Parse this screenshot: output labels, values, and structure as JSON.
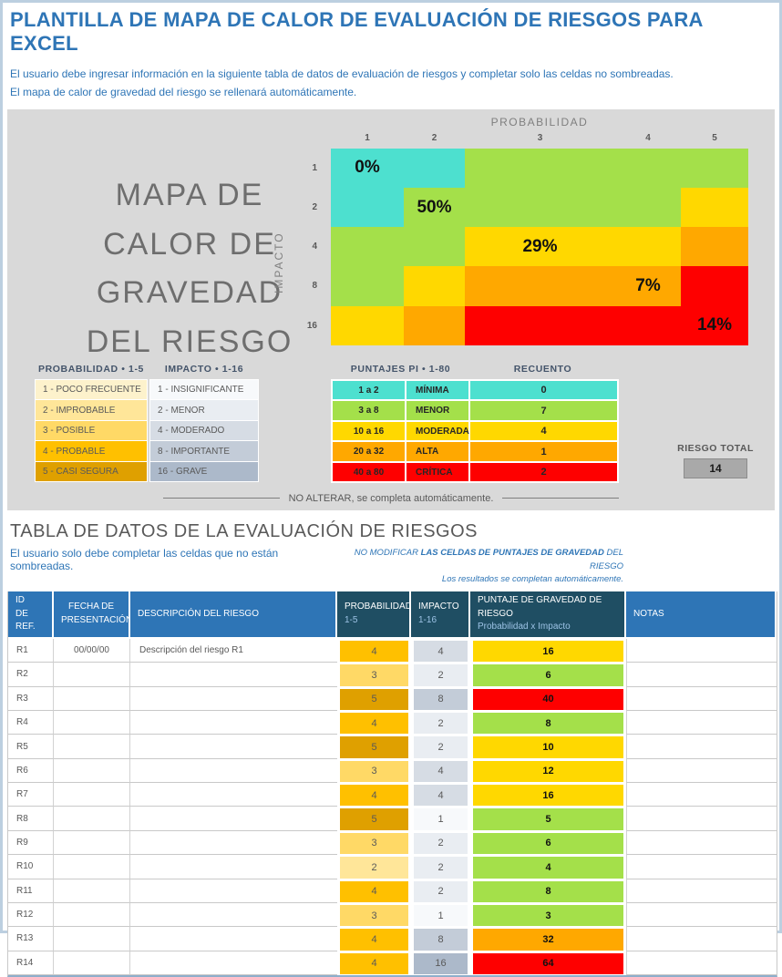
{
  "page": {
    "title": "PLANTILLA DE MAPA DE CALOR DE EVALUACIÓN DE RIESGOS PARA EXCEL",
    "instructions": [
      "El usuario debe ingresar información en la siguiente tabla de datos de evaluación de riesgos y completar solo las celdas no sombreadas.",
      "El mapa de calor de gravedad del riesgo se rellenará automáticamente."
    ]
  },
  "colors": {
    "accent_blue": "#2e75b6",
    "header_dark": "#1f4e63",
    "panel_gray": "#d9d9d9",
    "severity": {
      "minima": "#4de0cf",
      "menor": "#a4e04a",
      "moderada": "#ffd800",
      "alta": "#ffa800",
      "critica": "#fe0000"
    },
    "probability": {
      "1": "#fdf2cc",
      "2": "#ffe699",
      "3": "#ffd966",
      "4": "#ffc000",
      "5": "#dfa000"
    },
    "impact": {
      "1": "#f7f9fb",
      "2": "#e9edf2",
      "4": "#d6dce4",
      "8": "#c3ccd8",
      "16": "#acb9ca"
    }
  },
  "heatmap": {
    "title_lines": [
      "MAPA DE",
      "CALOR DE",
      "GRAVEDAD",
      "DEL RIESGO"
    ],
    "x_axis_label": "PROBABILIDAD",
    "y_axis_label": "IMPACTO",
    "col_labels": [
      "1",
      "2",
      "3",
      "4",
      "5"
    ],
    "row_labels": [
      "1",
      "2",
      "4",
      "8",
      "16"
    ],
    "cells": [
      [
        "minima",
        "minima",
        "menor",
        "menor",
        "menor"
      ],
      [
        "minima",
        "menor",
        "menor",
        "menor",
        "moderada"
      ],
      [
        "menor",
        "menor",
        "moderada",
        "moderada",
        "alta"
      ],
      [
        "menor",
        "moderada",
        "alta",
        "alta",
        "critica"
      ],
      [
        "moderada",
        "alta",
        "critica",
        "critica",
        "critica"
      ]
    ],
    "percent_labels": [
      {
        "row": 0,
        "col": 0,
        "text": "0%"
      },
      {
        "row": 1,
        "col": 1,
        "text": "50%"
      },
      {
        "row": 2,
        "col": 2,
        "text": "29%"
      },
      {
        "row": 3,
        "col": 3,
        "text": "7%"
      },
      {
        "row": 4,
        "col": 4,
        "text": "14%"
      }
    ]
  },
  "legends": {
    "probability": {
      "header": "PROBABILIDAD • 1-5",
      "items": [
        {
          "value": "1",
          "label": "1 - POCO FRECUENTE"
        },
        {
          "value": "2",
          "label": "2 - IMPROBABLE"
        },
        {
          "value": "3",
          "label": "3 - POSIBLE"
        },
        {
          "value": "4",
          "label": "4 - PROBABLE"
        },
        {
          "value": "5",
          "label": "5 - CASI SEGURA"
        }
      ]
    },
    "impact": {
      "header": "IMPACTO • 1-16",
      "items": [
        {
          "value": "1",
          "label": "1 - INSIGNIFICANTE"
        },
        {
          "value": "2",
          "label": "2 - MENOR"
        },
        {
          "value": "4",
          "label": "4 - MODERADO"
        },
        {
          "value": "8",
          "label": "8 - IMPORTANTE"
        },
        {
          "value": "16",
          "label": "16 - GRAVE"
        }
      ]
    },
    "scores": {
      "header": "PUNTAJES PI • 1-80",
      "count_header": "RECUENTO",
      "rows": [
        {
          "range": "1 a 2",
          "label": "MÍNIMA",
          "count": "0",
          "severity": "minima"
        },
        {
          "range": "3 a 8",
          "label": "MENOR",
          "count": "7",
          "severity": "menor"
        },
        {
          "range": "10 a 16",
          "label": "MODERADA",
          "count": "4",
          "severity": "moderada"
        },
        {
          "range": "20 a 32",
          "label": "ALTA",
          "count": "1",
          "severity": "alta"
        },
        {
          "range": "40 a 80",
          "label": "CRÍTICA",
          "count": "2",
          "severity": "critica"
        }
      ]
    },
    "risk_total": {
      "label": "RIESGO TOTAL",
      "value": "14"
    },
    "no_alter_note": "NO ALTERAR, se completa automáticamente."
  },
  "data_section": {
    "title": "TABLA DE DATOS DE LA EVALUACIÓN DE RIESGOS",
    "instruction_left": "El usuario solo debe completar las celdas que no están sombreadas.",
    "note_right": {
      "prefix": "NO MODIFICAR ",
      "bold": "LAS CELDAS DE PUNTAJES DE GRAVEDAD",
      "suffix": " DEL RIESGO",
      "line2": "Los resultados se completan automáticamente."
    },
    "table": {
      "headers": {
        "id": [
          "ID",
          "DE REF."
        ],
        "fecha": [
          "FECHA DE",
          "PRESENTACIÓN"
        ],
        "descripcion": [
          "DESCRIPCIÓN DEL RIESGO"
        ],
        "probabilidad": [
          "PROBABILIDAD",
          "1-5"
        ],
        "impacto": [
          "IMPACTO",
          "1-16"
        ],
        "puntaje": [
          "PUNTAJE DE GRAVEDAD DE RIESGO",
          "Probabilidad x Impacto"
        ],
        "notas": [
          "NOTAS"
        ]
      },
      "rows": [
        {
          "id": "R1",
          "fecha": "00/00/00",
          "descripcion": "Descripción del riesgo R1",
          "probabilidad": 4,
          "impacto": 4,
          "puntaje": 16,
          "notas": ""
        },
        {
          "id": "R2",
          "fecha": "",
          "descripcion": "",
          "probabilidad": 3,
          "impacto": 2,
          "puntaje": 6,
          "notas": ""
        },
        {
          "id": "R3",
          "fecha": "",
          "descripcion": "",
          "probabilidad": 5,
          "impacto": 8,
          "puntaje": 40,
          "notas": ""
        },
        {
          "id": "R4",
          "fecha": "",
          "descripcion": "",
          "probabilidad": 4,
          "impacto": 2,
          "puntaje": 8,
          "notas": ""
        },
        {
          "id": "R5",
          "fecha": "",
          "descripcion": "",
          "probabilidad": 5,
          "impacto": 2,
          "puntaje": 10,
          "notas": ""
        },
        {
          "id": "R6",
          "fecha": "",
          "descripcion": "",
          "probabilidad": 3,
          "impacto": 4,
          "puntaje": 12,
          "notas": ""
        },
        {
          "id": "R7",
          "fecha": "",
          "descripcion": "",
          "probabilidad": 4,
          "impacto": 4,
          "puntaje": 16,
          "notas": ""
        },
        {
          "id": "R8",
          "fecha": "",
          "descripcion": "",
          "probabilidad": 5,
          "impacto": 1,
          "puntaje": 5,
          "notas": ""
        },
        {
          "id": "R9",
          "fecha": "",
          "descripcion": "",
          "probabilidad": 3,
          "impacto": 2,
          "puntaje": 6,
          "notas": ""
        },
        {
          "id": "R10",
          "fecha": "",
          "descripcion": "",
          "probabilidad": 2,
          "impacto": 2,
          "puntaje": 4,
          "notas": ""
        },
        {
          "id": "R11",
          "fecha": "",
          "descripcion": "",
          "probabilidad": 4,
          "impacto": 2,
          "puntaje": 8,
          "notas": ""
        },
        {
          "id": "R12",
          "fecha": "",
          "descripcion": "",
          "probabilidad": 3,
          "impacto": 1,
          "puntaje": 3,
          "notas": ""
        },
        {
          "id": "R13",
          "fecha": "",
          "descripcion": "",
          "probabilidad": 4,
          "impacto": 8,
          "puntaje": 32,
          "notas": ""
        },
        {
          "id": "R14",
          "fecha": "",
          "descripcion": "",
          "probabilidad": 4,
          "impacto": 16,
          "puntaje": 64,
          "notas": ""
        }
      ]
    }
  }
}
